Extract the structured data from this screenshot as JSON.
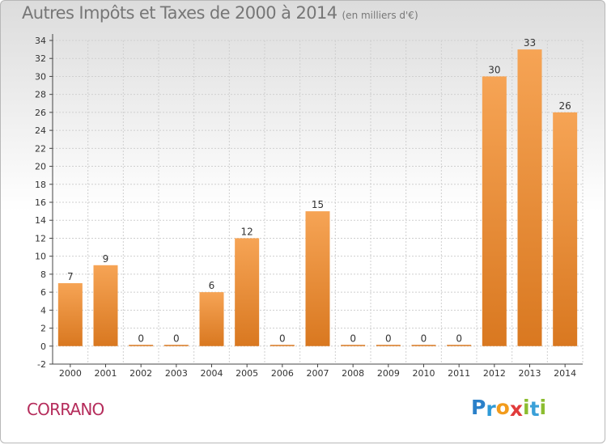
{
  "title": "Autres Impôts et Taxes de 2000 à 2014",
  "subtitle": "(en milliers d'€)",
  "commune": "CORRANO",
  "logo": {
    "letters": [
      "P",
      "r",
      "o",
      "x",
      "i",
      "t",
      "i"
    ],
    "colors": [
      "#2a80c9",
      "#2f9ad7",
      "#f29b1c",
      "#e13b3b",
      "#8cbd30",
      "#3aa0d8",
      "#8cbd30"
    ]
  },
  "colors": {
    "bar_light": "#f6a455",
    "bar_dark": "#d97820",
    "grid": "#cfcfcf",
    "axis": "#444444",
    "title": "#777777",
    "commune": "#b52c5b"
  },
  "chart_data": {
    "type": "bar",
    "categories": [
      "2000",
      "2001",
      "2002",
      "2003",
      "2004",
      "2005",
      "2006",
      "2007",
      "2008",
      "2009",
      "2010",
      "2011",
      "2012",
      "2013",
      "2014"
    ],
    "values": [
      7,
      9,
      0,
      0,
      6,
      12,
      0,
      15,
      0,
      0,
      0,
      0,
      30,
      33,
      26
    ],
    "data_labels": [
      "7",
      "9",
      "0",
      "0",
      "6",
      "12",
      "0",
      "15",
      "0",
      "0",
      "0",
      "0",
      "30",
      "33",
      "26"
    ],
    "y_ticks": [
      -2,
      0,
      2,
      4,
      6,
      8,
      10,
      12,
      14,
      16,
      18,
      20,
      22,
      24,
      26,
      28,
      30,
      32,
      34
    ],
    "ylim": [
      -2,
      34
    ],
    "xlabel": "",
    "ylabel": "",
    "grid": true,
    "legend": "none"
  }
}
